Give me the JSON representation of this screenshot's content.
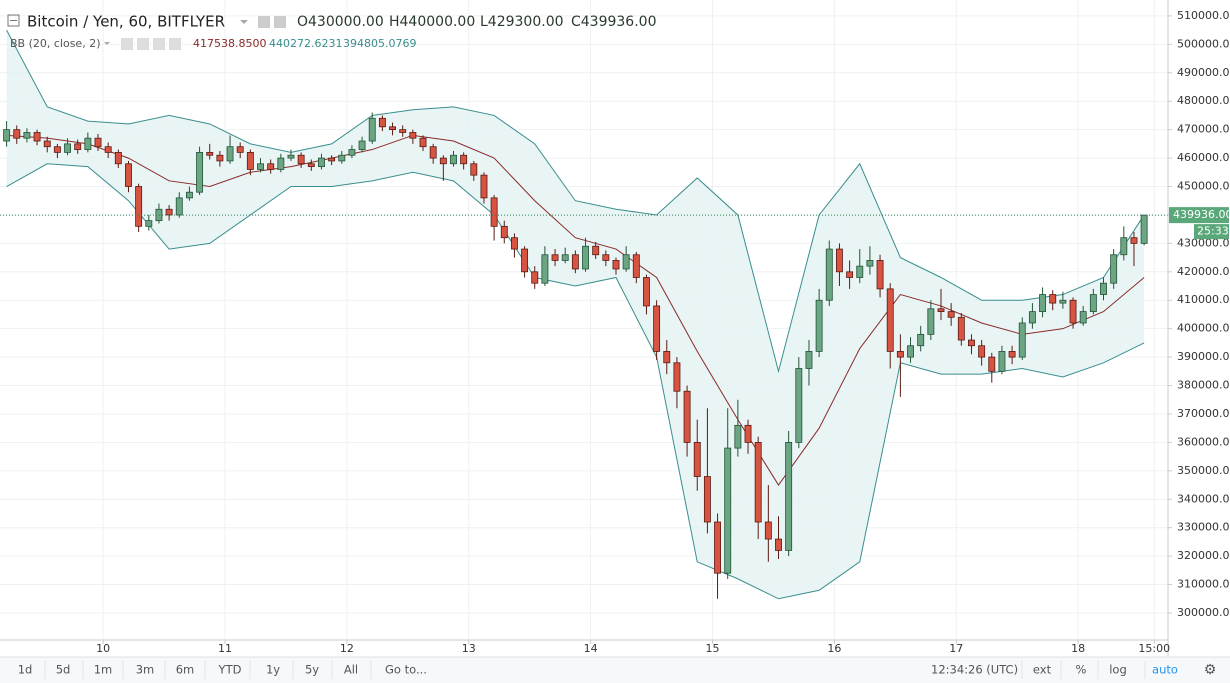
{
  "chart_data": {
    "type": "candlestick",
    "title": "Bitcoin / Yen, 60, BITFLYER",
    "readout": [
      "O430000.00",
      "H440000.00",
      "L429300.00",
      "C439936.00"
    ],
    "up_color": "#6ba583",
    "up_border": "#225437",
    "down_color": "#d75442",
    "down_border": "#5b1a13",
    "xlim": [
      -1.3,
      228.7
    ],
    "ylim": [
      290500,
      515600
    ],
    "grid": true,
    "xticks": [
      {
        "value": 19,
        "label": "10"
      },
      {
        "value": 43,
        "label": "11"
      },
      {
        "value": 67,
        "label": "12"
      },
      {
        "value": 91,
        "label": "13"
      },
      {
        "value": 115,
        "label": "14"
      },
      {
        "value": 139,
        "label": "15"
      },
      {
        "value": 163,
        "label": "16"
      },
      {
        "value": 187,
        "label": "17"
      },
      {
        "value": 211,
        "label": "18"
      },
      {
        "value": 226,
        "label": "15:00"
      }
    ],
    "yticks": [
      {
        "value": 300000,
        "label": "300000.00"
      },
      {
        "value": 310000,
        "label": "310000.00"
      },
      {
        "value": 320000,
        "label": "320000.00"
      },
      {
        "value": 330000,
        "label": "330000.00"
      },
      {
        "value": 340000,
        "label": "340000.00"
      },
      {
        "value": 350000,
        "label": "350000.00"
      },
      {
        "value": 360000,
        "label": "360000.00"
      },
      {
        "value": 370000,
        "label": "370000.00"
      },
      {
        "value": 380000,
        "label": "380000.00"
      },
      {
        "value": 390000,
        "label": "390000.00"
      },
      {
        "value": 400000,
        "label": "400000.00"
      },
      {
        "value": 410000,
        "label": "410000.00"
      },
      {
        "value": 420000,
        "label": "420000.00"
      },
      {
        "value": 430000,
        "label": "430000.00"
      },
      {
        "value": 440000,
        "label": "440000.00"
      },
      {
        "value": 450000,
        "label": "450000.00"
      },
      {
        "value": 460000,
        "label": "460000.00"
      },
      {
        "value": 470000,
        "label": "470000.00"
      },
      {
        "value": 480000,
        "label": "480000.00"
      },
      {
        "value": 490000,
        "label": "490000.00"
      },
      {
        "value": 500000,
        "label": "500000.00"
      },
      {
        "value": 510000,
        "label": "510000.00"
      }
    ],
    "x": [
      0,
      2,
      4,
      6,
      8,
      10,
      12,
      14,
      16,
      18,
      20,
      22,
      24,
      26,
      28,
      30,
      32,
      34,
      36,
      38,
      40,
      42,
      44,
      46,
      48,
      50,
      52,
      54,
      56,
      58,
      60,
      62,
      64,
      66,
      68,
      70,
      72,
      74,
      76,
      78,
      80,
      82,
      84,
      86,
      88,
      90,
      92,
      94,
      96,
      98,
      100,
      102,
      104,
      106,
      108,
      110,
      112,
      114,
      116,
      118,
      120,
      122,
      124,
      126,
      128,
      130,
      132,
      134,
      136,
      138,
      140,
      142,
      144,
      146,
      148,
      150,
      152,
      154,
      156,
      158,
      160,
      162,
      164,
      166,
      168,
      170,
      172,
      174,
      176,
      178,
      180,
      182,
      184,
      186,
      188,
      190,
      192,
      194,
      196,
      198,
      200,
      202,
      204,
      206,
      208,
      210,
      212,
      214,
      216,
      218,
      220,
      222,
      224
    ],
    "ohlc": [
      [
        466000,
        473000,
        464000,
        470000
      ],
      [
        470000,
        471500,
        465000,
        467000
      ],
      [
        467000,
        470500,
        465500,
        469000
      ],
      [
        469000,
        470000,
        464500,
        466000
      ],
      [
        466000,
        467500,
        462000,
        464000
      ],
      [
        464000,
        465000,
        460000,
        462000
      ],
      [
        462000,
        467000,
        461000,
        465000
      ],
      [
        465000,
        466500,
        461500,
        463000
      ],
      [
        463000,
        469000,
        462000,
        467000
      ],
      [
        467000,
        468500,
        462500,
        464000
      ],
      [
        464000,
        465500,
        460000,
        462000
      ],
      [
        462000,
        463000,
        456500,
        458000
      ],
      [
        458000,
        459000,
        448000,
        450000
      ],
      [
        450000,
        451000,
        434000,
        436000
      ],
      [
        436000,
        440000,
        434500,
        438000
      ],
      [
        438000,
        444000,
        437000,
        442000
      ],
      [
        442000,
        443500,
        438000,
        440000
      ],
      [
        440000,
        448000,
        439000,
        446000
      ],
      [
        446000,
        450000,
        445000,
        448000
      ],
      [
        448000,
        464000,
        447000,
        462000
      ],
      [
        462000,
        465000,
        459500,
        461000
      ],
      [
        461000,
        462500,
        457000,
        459000
      ],
      [
        459000,
        468000,
        458000,
        464000
      ],
      [
        464000,
        465500,
        460000,
        462000
      ],
      [
        462000,
        463000,
        454000,
        456000
      ],
      [
        456000,
        460000,
        455000,
        458000
      ],
      [
        458000,
        459500,
        454500,
        456000
      ],
      [
        456000,
        461500,
        455000,
        460000
      ],
      [
        460000,
        463000,
        459000,
        461000
      ],
      [
        461000,
        462000,
        456500,
        458000
      ],
      [
        458000,
        459500,
        455500,
        457000
      ],
      [
        457000,
        461500,
        456000,
        460000
      ],
      [
        460000,
        461000,
        457500,
        459000
      ],
      [
        459000,
        462500,
        458000,
        461000
      ],
      [
        461000,
        464500,
        460000,
        463000
      ],
      [
        463000,
        467500,
        462000,
        466000
      ],
      [
        466000,
        476000,
        465000,
        474000
      ],
      [
        474000,
        475000,
        469500,
        471000
      ],
      [
        471000,
        472500,
        468000,
        470000
      ],
      [
        470000,
        471500,
        467500,
        469000
      ],
      [
        469000,
        470000,
        465000,
        467000
      ],
      [
        467000,
        468000,
        462500,
        464000
      ],
      [
        464000,
        465000,
        458000,
        460000
      ],
      [
        460000,
        461000,
        452000,
        458000
      ],
      [
        458000,
        462500,
        457000,
        461000
      ],
      [
        461000,
        462000,
        456000,
        458000
      ],
      [
        458000,
        459000,
        452000,
        454000
      ],
      [
        454000,
        455000,
        444000,
        446000
      ],
      [
        446000,
        447000,
        431000,
        436000
      ],
      [
        436000,
        438000,
        430000,
        432000
      ],
      [
        432000,
        433500,
        425000,
        428000
      ],
      [
        428000,
        429000,
        418000,
        420000
      ],
      [
        420000,
        422000,
        414000,
        416000
      ],
      [
        416000,
        429000,
        415000,
        426000
      ],
      [
        426000,
        428000,
        422000,
        424000
      ],
      [
        424000,
        428500,
        423000,
        426000
      ],
      [
        426000,
        427500,
        419500,
        421000
      ],
      [
        421000,
        432000,
        420000,
        429000
      ],
      [
        429000,
        430500,
        424500,
        426000
      ],
      [
        426000,
        427500,
        422000,
        424000
      ],
      [
        424000,
        425000,
        419000,
        421000
      ],
      [
        421000,
        429000,
        420000,
        426000
      ],
      [
        426000,
        427000,
        416000,
        418000
      ],
      [
        418000,
        419000,
        405000,
        408000
      ],
      [
        408000,
        410000,
        389000,
        392000
      ],
      [
        392000,
        396000,
        384000,
        388000
      ],
      [
        388000,
        390000,
        372000,
        378000
      ],
      [
        378000,
        380000,
        355000,
        360000
      ],
      [
        360000,
        368000,
        343000,
        348000
      ],
      [
        348000,
        372000,
        328000,
        332000
      ],
      [
        332000,
        335000,
        305000,
        314000
      ],
      [
        314000,
        372000,
        312000,
        358000
      ],
      [
        358000,
        375000,
        355000,
        366000
      ],
      [
        366000,
        368000,
        356000,
        360000
      ],
      [
        360000,
        362000,
        326000,
        332000
      ],
      [
        332000,
        345000,
        318000,
        326000
      ],
      [
        326000,
        334000,
        319000,
        322000
      ],
      [
        322000,
        364000,
        320000,
        360000
      ],
      [
        360000,
        390000,
        358000,
        386000
      ],
      [
        386000,
        396000,
        380000,
        392000
      ],
      [
        392000,
        414000,
        390000,
        410000
      ],
      [
        410000,
        431000,
        408000,
        428000
      ],
      [
        428000,
        430000,
        415000,
        420000
      ],
      [
        420000,
        424000,
        414000,
        418000
      ],
      [
        418000,
        428000,
        416000,
        422000
      ],
      [
        422000,
        429000,
        419000,
        424000
      ],
      [
        424000,
        426000,
        411000,
        414000
      ],
      [
        414000,
        416000,
        386000,
        392000
      ],
      [
        392000,
        398000,
        376000,
        390000
      ],
      [
        390000,
        397000,
        388000,
        394000
      ],
      [
        394000,
        401000,
        392000,
        398000
      ],
      [
        398000,
        410000,
        396000,
        407000
      ],
      [
        407000,
        414000,
        403000,
        406000
      ],
      [
        406000,
        409000,
        401000,
        404000
      ],
      [
        404000,
        405500,
        394000,
        396000
      ],
      [
        396000,
        398000,
        391000,
        394000
      ],
      [
        394000,
        396000,
        387000,
        390000
      ],
      [
        390000,
        391500,
        381000,
        385000
      ],
      [
        385000,
        394000,
        384000,
        392000
      ],
      [
        392000,
        394000,
        387500,
        390000
      ],
      [
        390000,
        404000,
        389000,
        402000
      ],
      [
        402000,
        409000,
        400000,
        406000
      ],
      [
        406000,
        414500,
        404000,
        412000
      ],
      [
        412000,
        413500,
        406500,
        409000
      ],
      [
        409000,
        413000,
        407000,
        410000
      ],
      [
        410000,
        411000,
        400000,
        402000
      ],
      [
        402000,
        408000,
        401000,
        406000
      ],
      [
        406000,
        414000,
        405000,
        412000
      ],
      [
        412000,
        418000,
        410000,
        416000
      ],
      [
        416000,
        428000,
        414000,
        426000
      ],
      [
        426000,
        436000,
        424000,
        432000
      ],
      [
        432000,
        434000,
        422000,
        430000
      ],
      [
        430000,
        440000,
        429300,
        439936
      ]
    ],
    "bollinger": {
      "label": "BB (20, close, 2)",
      "readout": [
        "417538.8500",
        "440272.6231",
        "394805.0769"
      ],
      "fill": "#e4f3f3",
      "x": [
        0,
        8,
        16,
        24,
        32,
        40,
        48,
        56,
        64,
        72,
        80,
        88,
        96,
        104,
        112,
        120,
        128,
        136,
        144,
        152,
        160,
        168,
        176,
        184,
        192,
        200,
        208,
        216,
        224
      ],
      "middle": {
        "color": "#8b2a2a",
        "values": [
          468000,
          467000,
          465000,
          460000,
          452000,
          450000,
          455000,
          457000,
          460000,
          463000,
          468000,
          466000,
          460000,
          445000,
          432000,
          428000,
          418000,
          392000,
          368000,
          345000,
          365000,
          393000,
          412000,
          408000,
          402000,
          398000,
          400000,
          406000,
          418000
        ]
      },
      "upper": {
        "color": "#3a8d8d",
        "values": [
          505000,
          478000,
          473000,
          472000,
          475000,
          472000,
          465000,
          462000,
          465000,
          475000,
          477000,
          478000,
          475000,
          465000,
          445000,
          442000,
          440000,
          453000,
          440000,
          385000,
          440000,
          458000,
          425000,
          418000,
          410000,
          410000,
          412000,
          418000,
          440000
        ]
      },
      "lower": {
        "color": "#3a8d8d",
        "values": [
          450000,
          458000,
          457000,
          445000,
          428000,
          430000,
          440000,
          450000,
          450000,
          452000,
          455000,
          452000,
          440000,
          418000,
          415000,
          418000,
          390000,
          318000,
          312000,
          305000,
          308000,
          318000,
          388000,
          384000,
          384000,
          386000,
          383000,
          388000,
          395000
        ]
      }
    },
    "price_tag": "439936.00",
    "countdown": "25:33",
    "toolbar": {
      "ranges": [
        "1d",
        "5d",
        "1m",
        "3m",
        "6m",
        "YTD",
        "1y",
        "5y",
        "All"
      ],
      "goto": "Go to...",
      "clock": "12:34:26 (UTC)",
      "options": [
        "ext",
        "%",
        "log",
        "auto"
      ]
    }
  }
}
